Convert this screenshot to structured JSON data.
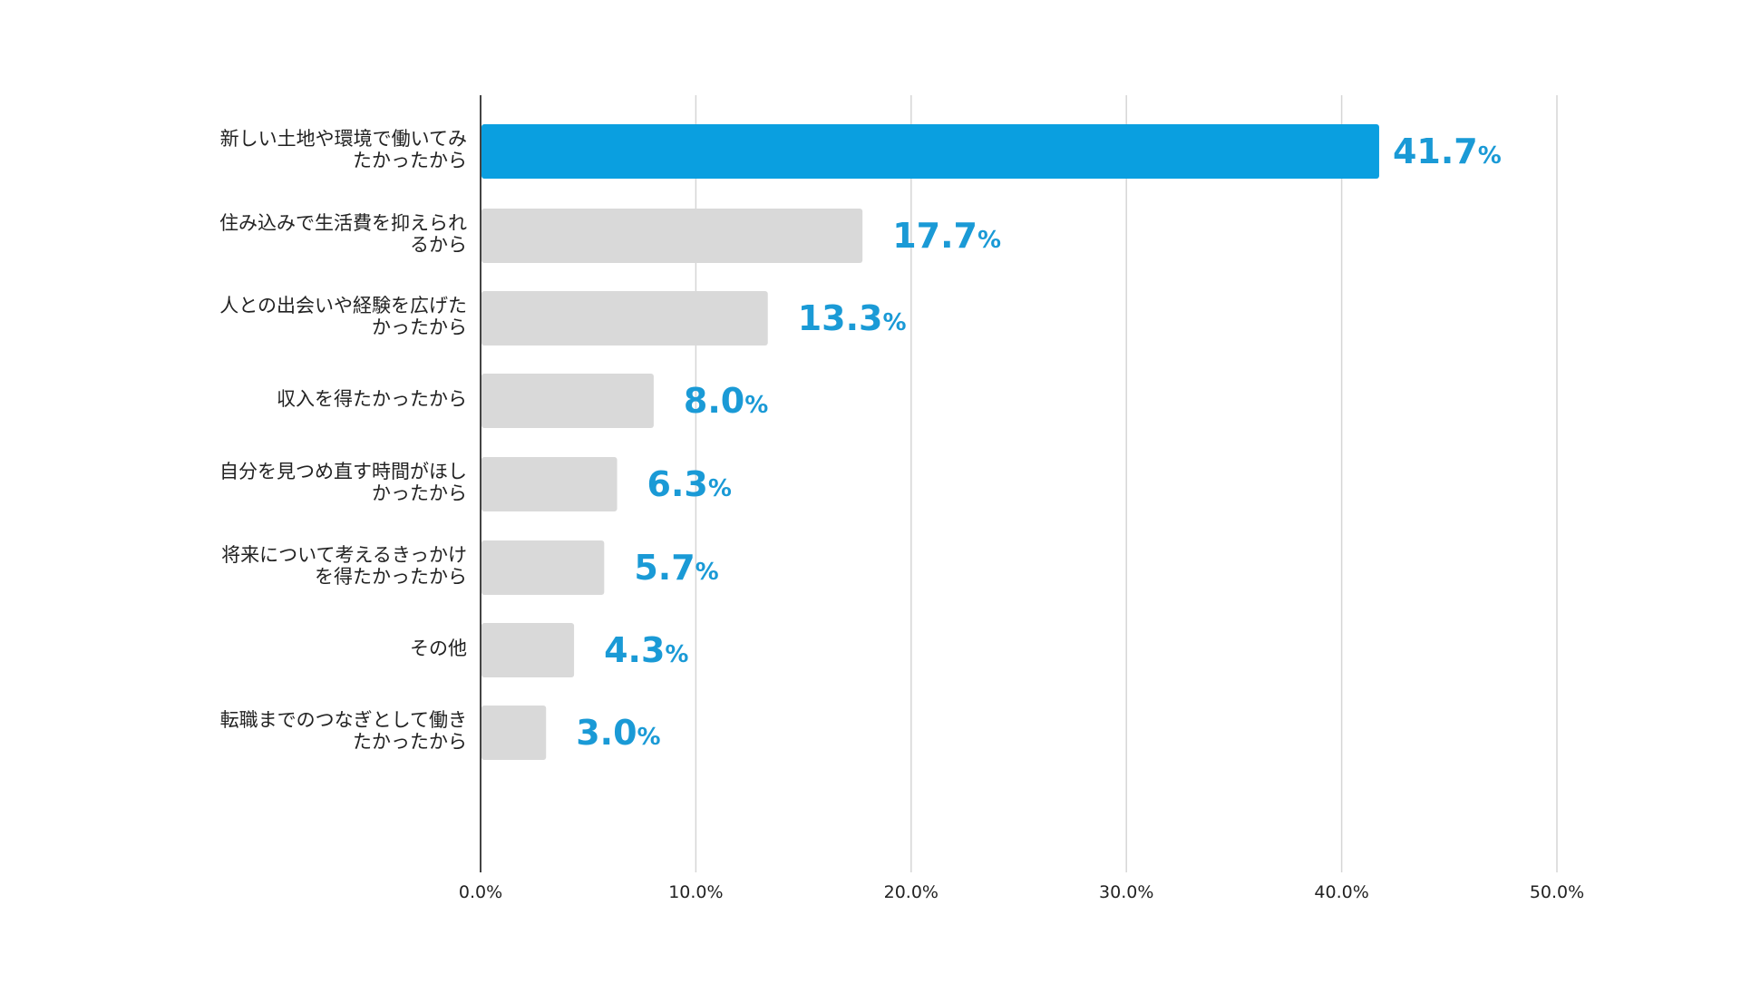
{
  "chart_data": {
    "type": "bar",
    "orientation": "horizontal",
    "categories": [
      [
        "新しい土地や環境で働いてみ",
        "たかったから"
      ],
      [
        "住み込みで生活費を抑えられ",
        "るから"
      ],
      [
        "人との出会いや経験を広げた",
        "かったから"
      ],
      [
        "収入を得たかったから"
      ],
      [
        "自分を見つめ直す時間がほし",
        "かったから"
      ],
      [
        "将来について考えるきっかけ",
        "を得たかったから"
      ],
      [
        "その他"
      ],
      [
        "転職までのつなぎとして働き",
        "たかったから"
      ]
    ],
    "values": [
      41.7,
      17.7,
      13.3,
      8.0,
      6.3,
      5.7,
      4.3,
      3.0
    ],
    "value_labels": [
      "41.7",
      "17.7",
      "13.3",
      "8.0",
      "6.3",
      "5.7",
      "4.3",
      "3.0"
    ],
    "value_suffix": "%",
    "xlim": [
      0,
      50
    ],
    "xticks": [
      "0.0%",
      "10.0%",
      "20.0%",
      "30.0%",
      "40.0%",
      "50.0%"
    ],
    "grid": true,
    "colors": {
      "highlight": "#0a9fe0",
      "bar": "#d9d9d9",
      "label": "#1a9ad6",
      "grid": "#d6d6d6",
      "axis": "#444444"
    }
  }
}
